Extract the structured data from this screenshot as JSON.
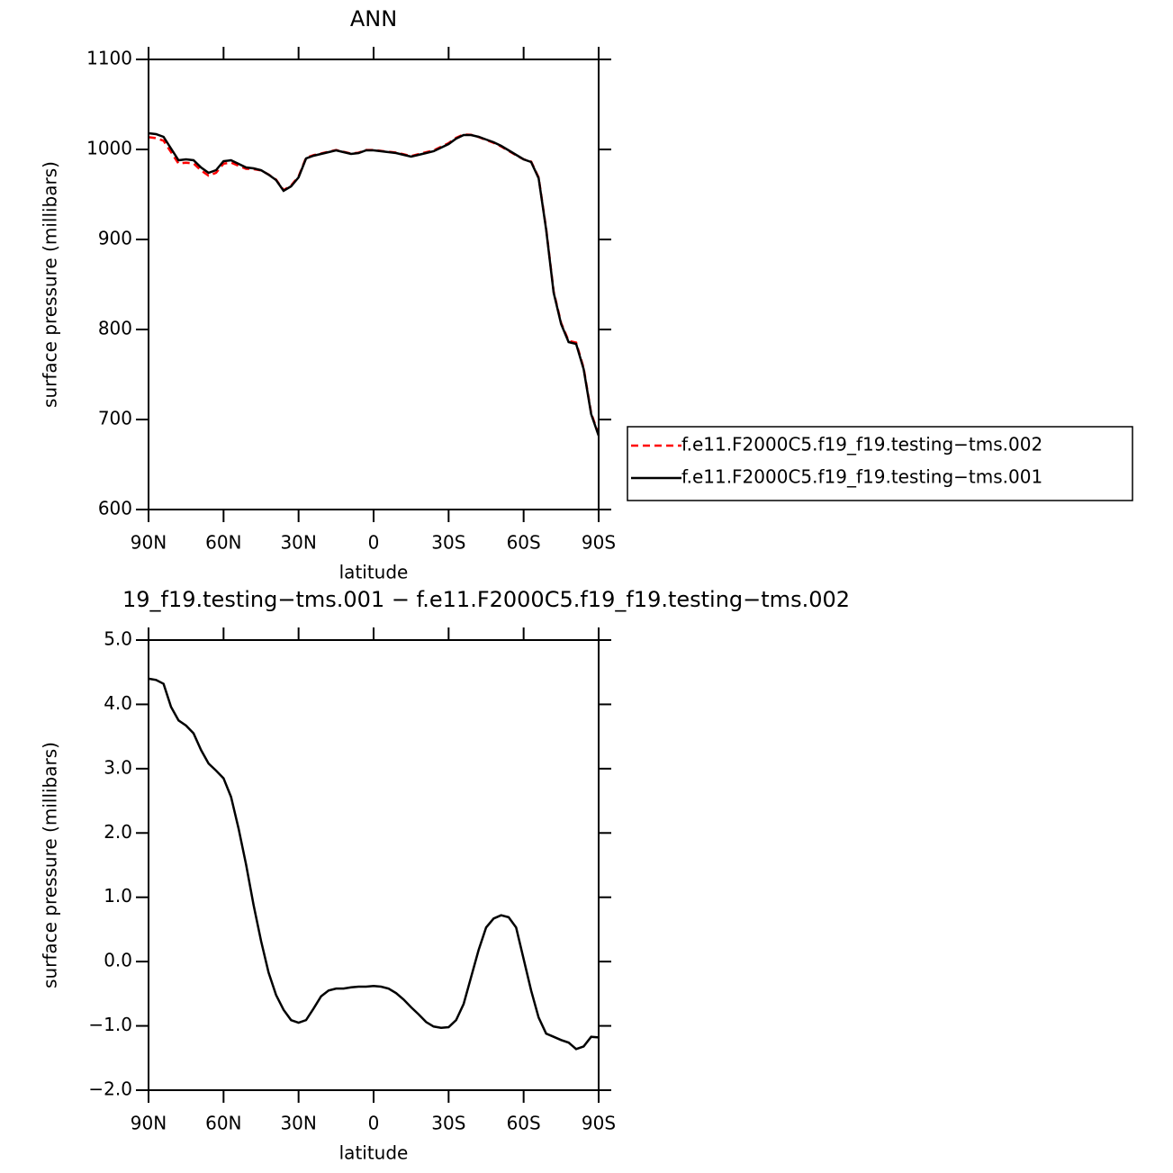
{
  "chart_data": [
    {
      "type": "line",
      "title": "ANN",
      "xlabel": "latitude",
      "ylabel": "surface pressure (millibars)",
      "x": [
        90,
        87,
        84,
        81,
        78,
        75,
        72,
        69,
        66,
        63,
        60,
        57,
        54,
        51,
        48,
        45,
        42,
        39,
        36,
        33,
        30,
        27,
        24,
        21,
        18,
        15,
        12,
        9,
        6,
        3,
        0,
        -3,
        -6,
        -9,
        -12,
        -15,
        -18,
        -21,
        -24,
        -27,
        -30,
        -33,
        -36,
        -39,
        -42,
        -45,
        -48,
        -51,
        -54,
        -57,
        -60,
        -63,
        -66,
        -69,
        -72,
        -75,
        -78,
        -81,
        -84,
        -87,
        -90
      ],
      "xlim": [
        90,
        -90
      ],
      "xticks": [
        {
          "value": 90,
          "label": "90N"
        },
        {
          "value": 60,
          "label": "60N"
        },
        {
          "value": 30,
          "label": "30N"
        },
        0,
        {
          "value": -30,
          "label": "30S"
        },
        {
          "value": -60,
          "label": "60S"
        },
        {
          "value": -90,
          "label": "90S"
        }
      ],
      "ylim": [
        600,
        1100
      ],
      "yticks": [
        600,
        700,
        800,
        900,
        1000,
        1100
      ],
      "legend": "right",
      "series": [
        {
          "name": "f.e11.F2000C5.f19_f19.testing−tms.002",
          "color": "#ff0000",
          "line_style": "dashed",
          "values": [
            1013.6,
            1012.6,
            1009.7,
            997.0,
            984.3,
            985.3,
            984.5,
            976.7,
            970.9,
            974.0,
            984.2,
            985.4,
            981.9,
            978.5,
            978.1,
            976.7,
            972.2,
            966.5,
            954.8,
            959.9,
            970.0,
            990.9,
            993.7,
            995.5,
            997.5,
            999.4,
            997.4,
            995.4,
            996.4,
            999.4,
            999.4,
            998.4,
            997.4,
            996.5,
            994.6,
            992.7,
            994.8,
            996.9,
            999.0,
            1003.0,
            1007.0,
            1012.9,
            1016.7,
            1016.2,
            1013.8,
            1010.5,
            1007.3,
            1003.3,
            998.3,
            993.5,
            989.0,
            986.5,
            968.9,
            912.1,
            842.2,
            807.2,
            787.3,
            785.4,
            757.3,
            707.2,
            683.2
          ]
        },
        {
          "name": "f.e11.F2000C5.f19_f19.testing−tms.001",
          "color": "#000000",
          "line_style": "solid",
          "values": [
            1018,
            1017,
            1014,
            1001,
            988,
            989,
            988,
            980,
            974,
            977,
            987,
            988,
            984,
            980,
            979,
            977,
            972,
            966,
            954,
            959,
            969,
            990,
            993,
            995,
            997,
            999,
            997,
            995,
            996,
            999,
            999,
            998,
            997,
            996,
            994,
            992,
            994,
            996,
            998,
            1002,
            1006,
            1012,
            1016,
            1016,
            1014,
            1011,
            1008,
            1004,
            999,
            994,
            989,
            986,
            968,
            911,
            841,
            806,
            786,
            784,
            756,
            706,
            682
          ]
        }
      ]
    },
    {
      "type": "line",
      "title": "19_f19.testing−tms.001 − f.e11.F2000C5.f19_f19.testing−tms.002",
      "xlabel": "latitude",
      "ylabel": "surface pressure (millibars)",
      "x": [
        90,
        87,
        84,
        81,
        78,
        75,
        72,
        69,
        66,
        63,
        60,
        57,
        54,
        51,
        48,
        45,
        42,
        39,
        36,
        33,
        30,
        27,
        24,
        21,
        18,
        15,
        12,
        9,
        6,
        3,
        0,
        -3,
        -6,
        -9,
        -12,
        -15,
        -18,
        -21,
        -24,
        -27,
        -30,
        -33,
        -36,
        -39,
        -42,
        -45,
        -48,
        -51,
        -54,
        -57,
        -60,
        -63,
        -66,
        -69,
        -72,
        -75,
        -78,
        -81,
        -84,
        -87,
        -90
      ],
      "xlim": [
        90,
        -90
      ],
      "xticks": [
        {
          "value": 90,
          "label": "90N"
        },
        {
          "value": 60,
          "label": "60N"
        },
        {
          "value": 30,
          "label": "30N"
        },
        0,
        {
          "value": -30,
          "label": "30S"
        },
        {
          "value": -60,
          "label": "60S"
        },
        {
          "value": -90,
          "label": "90S"
        }
      ],
      "ylim": [
        -2,
        5
      ],
      "yticks": [
        {
          "value": -2,
          "label": "−2.0"
        },
        {
          "value": -1,
          "label": "−1.0"
        },
        {
          "value": 0,
          "label": "0.0"
        },
        {
          "value": 1,
          "label": "1.0"
        },
        {
          "value": 2,
          "label": "2.0"
        },
        {
          "value": 3,
          "label": "3.0"
        },
        {
          "value": 4,
          "label": "4.0"
        },
        {
          "value": 5,
          "label": "5.0"
        }
      ],
      "color": "#000000",
      "values": [
        4.4,
        4.38,
        4.32,
        3.96,
        3.75,
        3.67,
        3.55,
        3.29,
        3.08,
        2.97,
        2.85,
        2.56,
        2.07,
        1.51,
        0.88,
        0.32,
        -0.17,
        -0.52,
        -0.75,
        -0.91,
        -0.95,
        -0.91,
        -0.73,
        -0.54,
        -0.45,
        -0.42,
        -0.42,
        -0.4,
        -0.39,
        -0.39,
        -0.38,
        -0.39,
        -0.42,
        -0.49,
        -0.59,
        -0.71,
        -0.82,
        -0.94,
        -1.01,
        -1.03,
        -1.02,
        -0.91,
        -0.66,
        -0.24,
        0.18,
        0.53,
        0.67,
        0.72,
        0.69,
        0.53,
        0.04,
        -0.45,
        -0.87,
        -1.12,
        -1.17,
        -1.22,
        -1.26,
        -1.36,
        -1.32,
        -1.17,
        -1.18
      ]
    }
  ]
}
